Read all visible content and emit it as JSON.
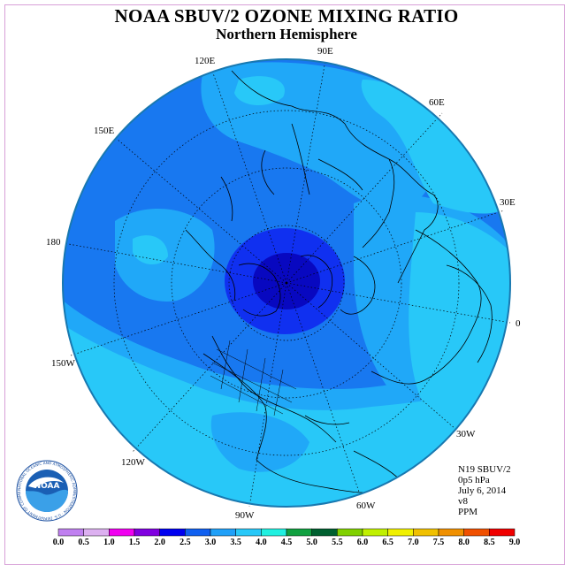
{
  "title": "NOAA SBUV/2 OZONE MIXING RATIO",
  "subtitle": "Northern Hemisphere",
  "lon_labels": {
    "e90": "90E",
    "e120": "120E",
    "e60": "60E",
    "e150": "150E",
    "e30": "30E",
    "l180": "180",
    "l0": "0",
    "w150": "150W",
    "w30": "30W",
    "w120": "120W",
    "w60": "60W",
    "w90": "90W"
  },
  "info": {
    "satellite": "N19 SBUV/2",
    "level": "0p5 hPa",
    "date": "July 6, 2014",
    "version": "v8",
    "units": "PPM"
  },
  "logo_text": "NOAA",
  "logo_ring_text": "NATIONAL OCEANIC AND ATMOSPHERIC ADMINISTRATION · U.S. DEPARTMENT OF COMMERCE",
  "colorbar": {
    "labels": [
      "0.0",
      "0.5",
      "1.0",
      "1.5",
      "2.0",
      "2.5",
      "3.0",
      "3.5",
      "4.0",
      "4.5",
      "5.0",
      "5.5",
      "6.0",
      "6.5",
      "7.0",
      "7.5",
      "8.0",
      "8.5",
      "9.0"
    ],
    "colors": [
      "#c080f0",
      "#dcb0f0",
      "#f000f0",
      "#8000e0",
      "#0000f0",
      "#1060f0",
      "#20a0f8",
      "#28c8f8",
      "#20f0e0",
      "#10a040",
      "#006030",
      "#80d000",
      "#c0f000",
      "#f0f000",
      "#f0c000",
      "#f09000",
      "#f05000",
      "#f00000",
      "#805030"
    ]
  },
  "map_colors": {
    "level_2_0": "#1030f0",
    "level_1_5": "#0808c0",
    "level_2_5": "#1878f0",
    "level_3_0": "#20a8f8",
    "level_3_5": "#28c8f8",
    "coast": "#000000"
  }
}
